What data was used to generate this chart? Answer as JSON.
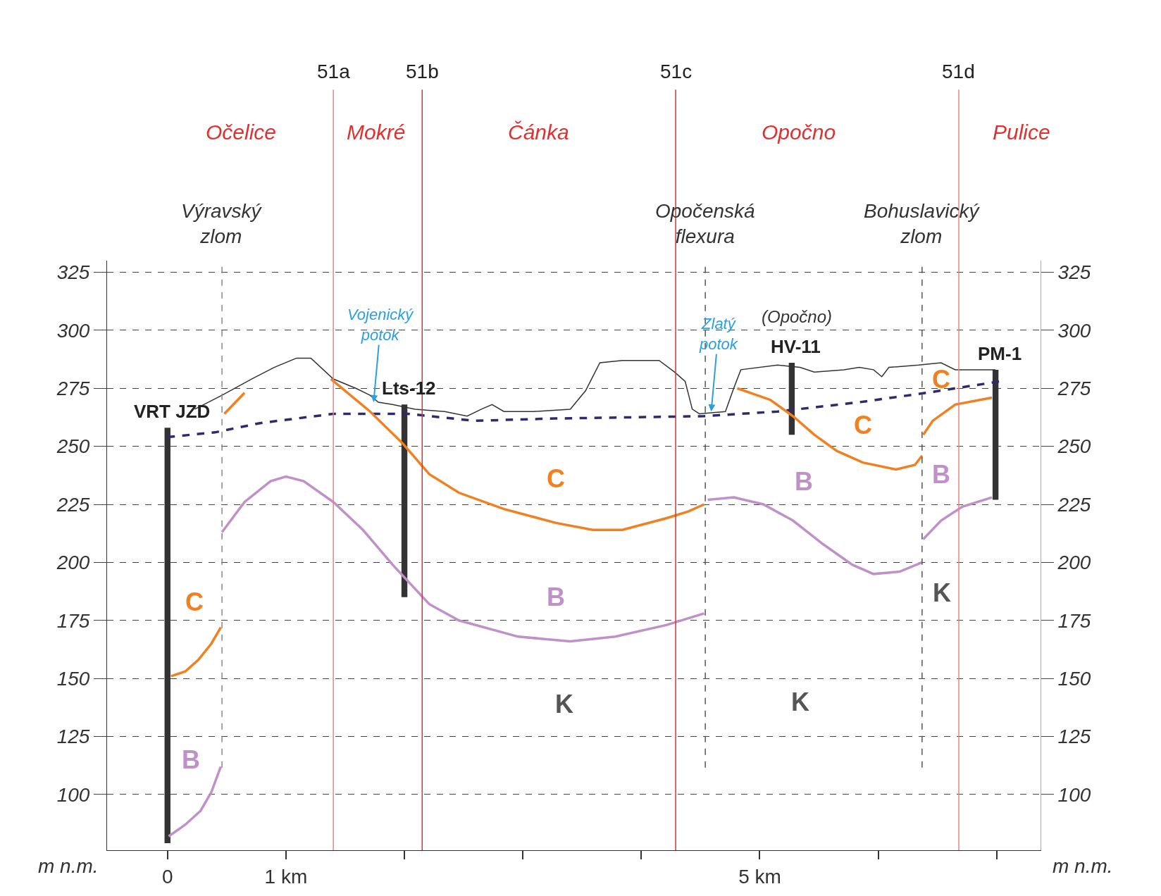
{
  "chart_data": {
    "type": "line",
    "xlim": [
      -0.51,
      7.37
    ],
    "xticks": [
      {
        "value": 0,
        "label": "0"
      },
      {
        "value": 1,
        "label": "1 km"
      },
      {
        "value": 2,
        "label": null
      },
      {
        "value": 3,
        "label": null
      },
      {
        "value": 4,
        "label": null
      },
      {
        "value": 5,
        "label": "5 km"
      },
      {
        "value": 6,
        "label": null
      },
      {
        "value": 7,
        "label": null
      }
    ],
    "ylim": [
      76,
      330
    ],
    "yticks": [
      100,
      125,
      150,
      175,
      200,
      225,
      250,
      275,
      300,
      325
    ],
    "y2lim": [
      76,
      330
    ],
    "y2ticks": [
      100,
      125,
      150,
      175,
      200,
      225,
      250,
      275,
      300,
      325
    ],
    "ylabel": "m n.m.",
    "y2label": "m n.m.",
    "grid": "y",
    "series": [
      {
        "color": "#333333",
        "line_style": "solid",
        "x": [
          0.23,
          0.46,
          0.71,
          0.9,
          1.09,
          1.21,
          1.4,
          1.59,
          1.71,
          1.78,
          1.9,
          2.09,
          2.34,
          2.53,
          2.65,
          2.74,
          2.84,
          3.09,
          3.4,
          3.53,
          3.65,
          3.84,
          4.15,
          4.28,
          4.37,
          4.43,
          4.49,
          4.71,
          4.78,
          4.84,
          5.15,
          5.34,
          5.46,
          5.71,
          5.84,
          5.96,
          6.03,
          6.09,
          6.34,
          6.53,
          6.65,
          6.99
        ],
        "values": [
          266,
          272,
          279,
          284,
          288,
          288,
          279,
          275,
          272,
          269,
          268,
          266,
          265,
          263,
          266,
          268,
          265,
          265,
          266,
          274,
          286,
          287,
          287,
          282,
          278,
          266,
          264,
          265,
          275,
          283,
          285,
          284,
          282,
          283,
          284,
          283,
          280,
          284,
          285,
          286,
          283,
          283
        ]
      },
      {
        "color": "#2e2a6b",
        "line_style": "dashed",
        "x": [
          0,
          0.4,
          0.78,
          1.4,
          2.03,
          2.59,
          3.28,
          4.53,
          5.15,
          5.84,
          6.4,
          7.03
        ],
        "values": [
          254,
          256,
          260,
          264,
          264,
          261,
          262,
          263,
          265,
          269,
          273,
          278
        ]
      },
      {
        "color": "#f08020",
        "line_style": "solid",
        "x": [
          0.03,
          0.15,
          0.26,
          0.37,
          0.45,
          0.46,
          0.48,
          0.65,
          1.0,
          1.38,
          1.71,
          1.99,
          2.21,
          2.46,
          2.84,
          3.28,
          3.59,
          3.84,
          4.21,
          4.4,
          4.53,
          4.6,
          4.81,
          5.09,
          5.28,
          5.46,
          5.65,
          5.87,
          6.15,
          6.31,
          6.37,
          6.375,
          6.38,
          6.46,
          6.65,
          6.96
        ],
        "values": [
          151,
          153,
          158,
          165,
          172,
          null,
          264,
          273,
          null,
          279,
          265,
          251,
          238,
          230,
          223,
          217,
          214,
          214,
          219,
          222,
          225,
          null,
          275,
          270,
          263,
          255,
          248,
          243,
          240,
          242,
          246,
          null,
          255,
          261,
          268,
          271
        ]
      },
      {
        "color": "#c090c8",
        "line_style": "solid",
        "x": [
          0.01,
          0.15,
          0.28,
          0.37,
          0.45,
          0.455,
          0.46,
          0.65,
          0.87,
          1.0,
          1.15,
          1.4,
          1.65,
          1.9,
          2.21,
          2.46,
          2.96,
          3.4,
          3.78,
          4.21,
          4.53,
          4.545,
          4.56,
          4.78,
          5.03,
          5.28,
          5.53,
          5.78,
          5.96,
          6.18,
          6.37,
          6.375,
          6.38,
          6.53,
          6.71,
          6.96
        ],
        "values": [
          82,
          87,
          93,
          101,
          112,
          null,
          213,
          226,
          235,
          237,
          235,
          226,
          214,
          199,
          182,
          175,
          168,
          166,
          168,
          173,
          178,
          null,
          227,
          228,
          225,
          218,
          208,
          199,
          195,
          196,
          200,
          null,
          210,
          218,
          224,
          228
        ]
      },
      {
        "type": "bar",
        "name": "VRT JZD",
        "color": "#333333",
        "x": [
          0
        ],
        "base": [
          79
        ],
        "values": [
          179
        ]
      },
      {
        "type": "bar",
        "name": "Lts-12",
        "color": "#333333",
        "x": [
          2.0
        ],
        "base": [
          185
        ],
        "values": [
          83
        ]
      },
      {
        "type": "bar",
        "name": "HV-11",
        "color": "#333333",
        "x": [
          5.27
        ],
        "base": [
          255
        ],
        "values": [
          31
        ]
      },
      {
        "type": "bar",
        "name": "PM-1",
        "color": "#333333",
        "x": [
          6.99
        ],
        "base": [
          227
        ],
        "values": [
          56
        ]
      }
    ],
    "ref_lines": [
      {
        "axis": "x",
        "value": 0.46,
        "label": "Výravský\nzlom",
        "color": "#888888",
        "line_style": "dashed"
      },
      {
        "axis": "x",
        "value": 4.54,
        "label": "Opočenská\nflexura",
        "color": "#555555",
        "line_style": "dashed"
      },
      {
        "axis": "x",
        "value": 6.37,
        "label": "Bohuslavický\nzlom",
        "color": "#555555",
        "line_style": "dashed"
      },
      {
        "axis": "x",
        "value": 1.4,
        "label": "51a",
        "color": "#f08080",
        "line_style": "solid"
      },
      {
        "axis": "x",
        "value": 2.15,
        "label": "51b",
        "color": "#e03030",
        "line_style": "solid"
      },
      {
        "axis": "x",
        "value": 4.29,
        "label": "51c",
        "color": "#e03030",
        "line_style": "solid"
      },
      {
        "axis": "x",
        "value": 6.68,
        "label": "51d",
        "color": "#f08080",
        "line_style": "solid"
      }
    ],
    "annotations": [
      "Očelice",
      "Mokré",
      "Čánka",
      "Opočno",
      "Pulice",
      {
        "text": "Vojenický\npotok",
        "x": 1.74,
        "y": 269
      },
      {
        "text": "Zlatý\npotok",
        "x": 4.59,
        "y": 265
      },
      "(Opočno)",
      "C",
      "B",
      "C",
      "B",
      "K",
      "C",
      "B",
      "K",
      "C",
      "B",
      "K"
    ]
  }
}
